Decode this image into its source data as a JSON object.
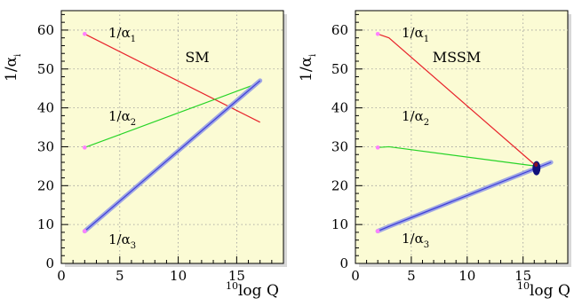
{
  "colors": {
    "plot_background": "#fbfbd4",
    "alpha1": "#e8242c",
    "alpha2": "#27d427",
    "alpha3": "#3d3dd8",
    "alpha3_band": "#9fa6e4",
    "endpoint_marker": "#ff80ff",
    "unification_point": "#10107a"
  },
  "chart_data": [
    {
      "type": "line",
      "title": "SM",
      "ylabel_main": "1/α",
      "ylabel_sub": "i",
      "xlabel_sup": "10",
      "xlabel_main": "log Q",
      "xlim": [
        0,
        19
      ],
      "ylim": [
        0,
        65
      ],
      "xticks": [
        0,
        5,
        10,
        15
      ],
      "yticks": [
        0,
        10,
        20,
        30,
        40,
        50,
        60
      ],
      "grid": true,
      "series": [
        {
          "name": "1/α",
          "sub": "1",
          "x": [
            2,
            17
          ],
          "y": [
            59,
            36.3
          ],
          "color_key": "alpha1"
        },
        {
          "name": "1/α",
          "sub": "2",
          "x": [
            2,
            17
          ],
          "y": [
            29.8,
            46.5
          ],
          "color_key": "alpha2"
        },
        {
          "name": "1/α",
          "sub": "3",
          "x": [
            2,
            17
          ],
          "y": [
            8.3,
            47
          ],
          "color_key": "alpha3"
        }
      ]
    },
    {
      "type": "line",
      "title": "MSSM",
      "ylabel_main": "1/α",
      "ylabel_sub": "i",
      "xlabel_sup": "10",
      "xlabel_main": "log Q",
      "xlim": [
        0,
        19
      ],
      "ylim": [
        0,
        65
      ],
      "xticks": [
        0,
        5,
        10,
        15
      ],
      "yticks": [
        0,
        10,
        20,
        30,
        40,
        50,
        60
      ],
      "grid": true,
      "unification": {
        "x": 16.2,
        "y": 24.5
      },
      "series": [
        {
          "name": "1/α",
          "sub": "1",
          "x": [
            2,
            3,
            16.2
          ],
          "y": [
            59,
            58,
            25
          ],
          "color_key": "alpha1"
        },
        {
          "name": "1/α",
          "sub": "2",
          "x": [
            2,
            3,
            16.2
          ],
          "y": [
            29.8,
            30,
            25
          ],
          "color_key": "alpha2"
        },
        {
          "name": "1/α",
          "sub": "3",
          "x": [
            2,
            3,
            17.5
          ],
          "y": [
            8.3,
            9.5,
            26
          ],
          "color_key": "alpha3"
        }
      ]
    }
  ]
}
